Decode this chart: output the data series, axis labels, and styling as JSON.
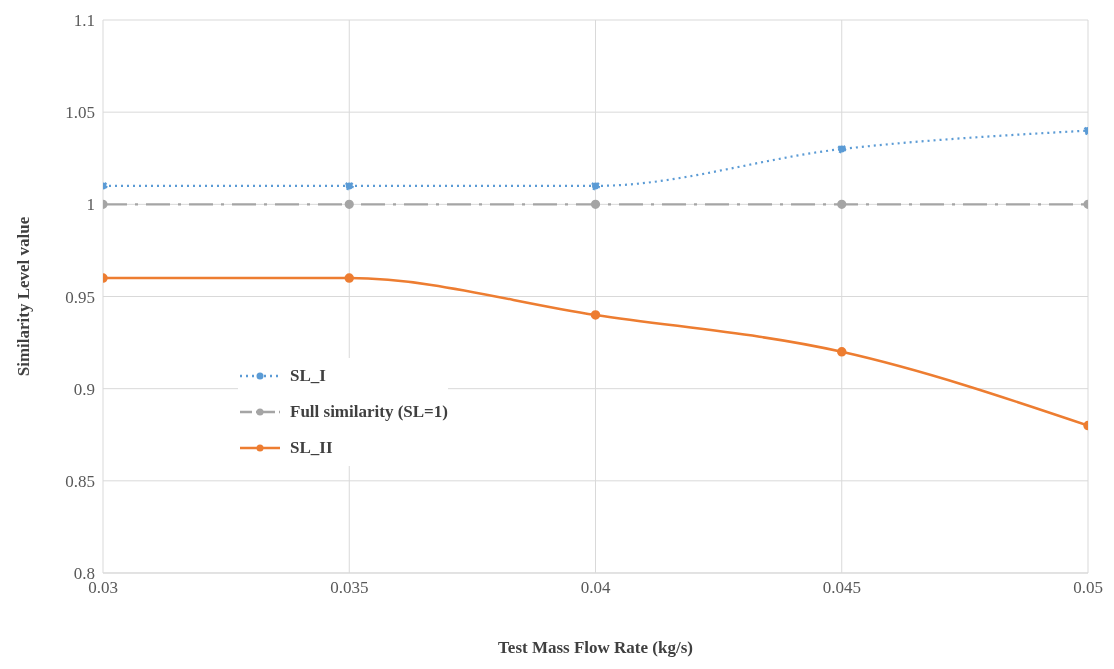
{
  "chart_data": {
    "type": "line",
    "xlabel": "Test Mass Flow Rate  (kg/s)",
    "ylabel": "Similarity  Level value",
    "x": [
      0.03,
      0.035,
      0.04,
      0.045,
      0.05
    ],
    "series": [
      {
        "name": "SL_I",
        "color": "#5b9bd5",
        "values": [
          1.01,
          1.01,
          1.01,
          1.03,
          1.04
        ],
        "line_style": "dotted"
      },
      {
        "name": "Full similarity (SL=1)",
        "color": "#a5a5a5",
        "values": [
          1,
          1,
          1,
          1,
          1
        ],
        "line_style": "dashed"
      },
      {
        "name": "SL_II",
        "color": "#ed7d31",
        "values": [
          0.96,
          0.96,
          0.94,
          0.92,
          0.88
        ],
        "line_style": "solid"
      }
    ],
    "xlim": [
      0.03,
      0.05
    ],
    "xticks": [
      0.03,
      0.035,
      0.04,
      0.045,
      0.05
    ],
    "ylim": [
      0.8,
      1.1
    ],
    "yticks": [
      0.8,
      0.85,
      0.9,
      0.95,
      1,
      1.05,
      1.1
    ],
    "grid": true,
    "legend": "left",
    "marker": "circle"
  }
}
